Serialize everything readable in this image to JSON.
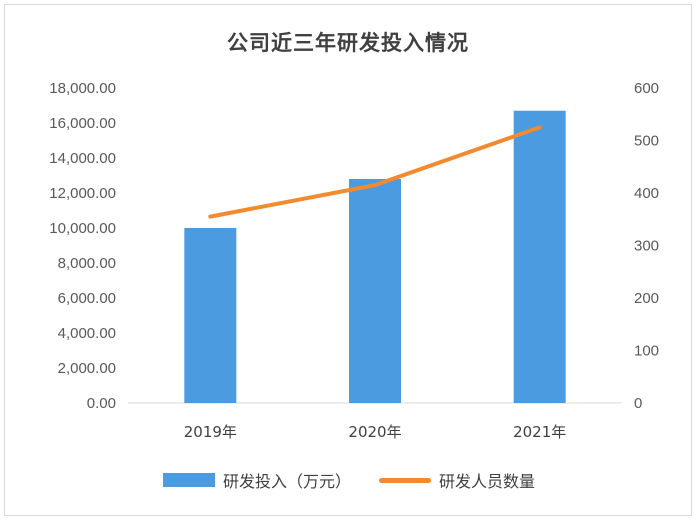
{
  "colors": {
    "bar": "#4a9be0",
    "line": "#f28a2f",
    "axis": "#d9d9d9"
  },
  "chart_data": {
    "type": "bar",
    "title": "公司近三年研发投入情况",
    "categories": [
      "2019年",
      "2020年",
      "2021年"
    ],
    "series": [
      {
        "name": "研发投入（万元）",
        "type": "bar",
        "axis": "left",
        "values": [
          10000,
          12800,
          16700
        ]
      },
      {
        "name": "研发人员数量",
        "type": "line",
        "axis": "right",
        "values": [
          355,
          415,
          525
        ]
      }
    ],
    "y_left": {
      "lim": [
        0,
        18000
      ],
      "ticks": [
        "0.00",
        "2,000.00",
        "4,000.00",
        "6,000.00",
        "8,000.00",
        "10,000.00",
        "12,000.00",
        "14,000.00",
        "16,000.00",
        "18,000.00"
      ]
    },
    "y_right": {
      "lim": [
        0,
        600
      ],
      "ticks": [
        "0",
        "100",
        "200",
        "300",
        "400",
        "500",
        "600"
      ]
    },
    "grid": false,
    "legend": "bottom"
  }
}
